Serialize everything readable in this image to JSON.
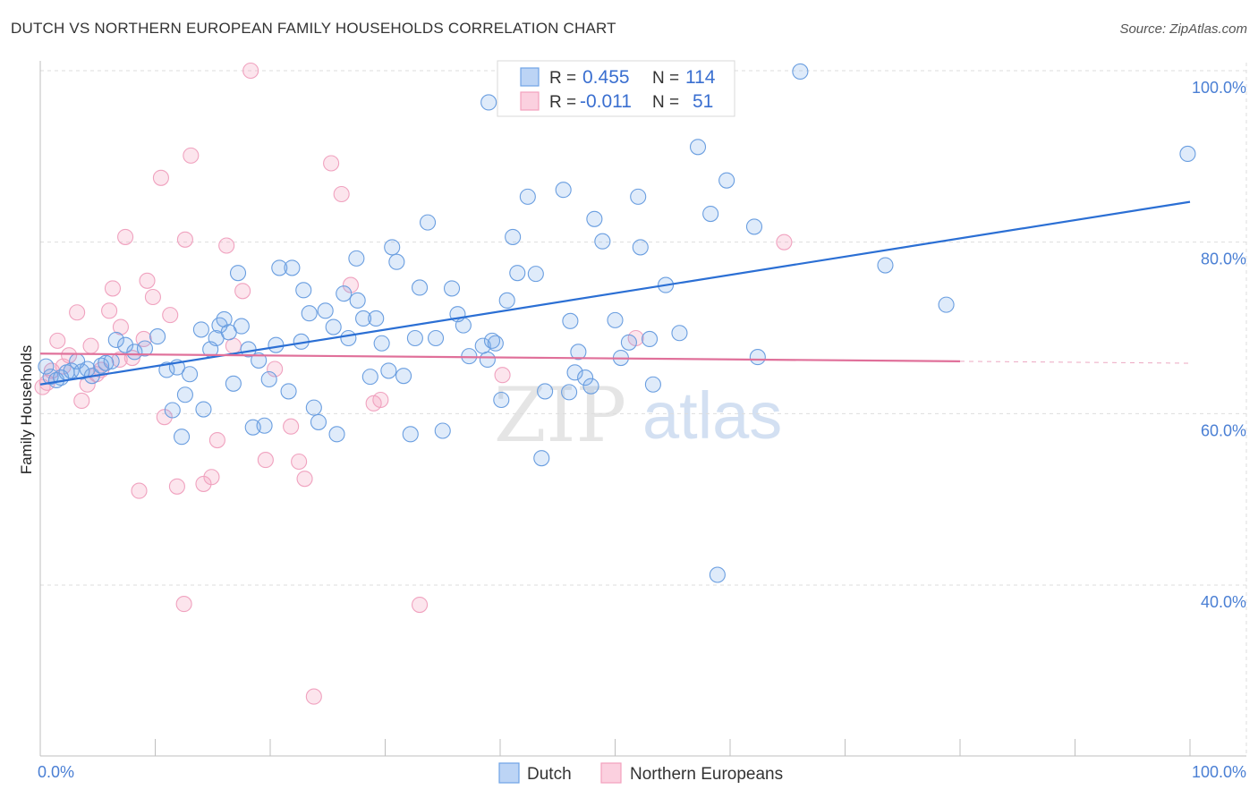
{
  "title": "DUTCH VS NORTHERN EUROPEAN FAMILY HOUSEHOLDS CORRELATION CHART",
  "source": "Source: ZipAtlas.com",
  "watermark": {
    "zip": "ZIP",
    "atlas": "atlas"
  },
  "colors": {
    "blue": "#6fa3e6",
    "blue_line": "#2b6fd4",
    "pink": "#f4a0bd",
    "pink_line": "#e0709a",
    "tick": "#4a7fd4"
  },
  "legend": {
    "rows": [
      {
        "r_label": "R =",
        "r_value": "0.455",
        "n_label": "N =",
        "n_value": "114"
      },
      {
        "r_label": "R =",
        "r_value": "-0.011",
        "n_label": "N =",
        "n_value": "51"
      }
    ]
  },
  "bottom_legend": [
    "Dutch",
    "Northern Europeans"
  ],
  "chart_data": {
    "type": "scatter",
    "title": "DUTCH VS NORTHERN EUROPEAN FAMILY HOUSEHOLDS CORRELATION CHART",
    "xlabel": "",
    "ylabel": "Family Households",
    "xlim": [
      0,
      100
    ],
    "ylim": [
      22,
      102
    ],
    "x_tick_labels": [
      "0.0%",
      "100.0%"
    ],
    "y_ticks": [
      40,
      60,
      80,
      100
    ],
    "y_tick_labels": [
      "40.0%",
      "60.0%",
      "80.0%",
      "100.0%"
    ],
    "grid": true,
    "legend_position": "top-center",
    "series": [
      {
        "name": "Dutch",
        "color": "#6fa3e6",
        "trend": {
          "x": [
            0,
            100
          ],
          "y": [
            63.4,
            84.7
          ]
        },
        "points": [
          [
            0.5,
            65.5
          ],
          [
            0.9,
            64.3
          ],
          [
            1.4,
            63.9
          ],
          [
            1.8,
            64.2
          ],
          [
            2.3,
            64.8
          ],
          [
            2.7,
            65.0
          ],
          [
            3.2,
            66.1
          ],
          [
            3.6,
            64.9
          ],
          [
            4.1,
            65.2
          ],
          [
            4.5,
            64.4
          ],
          [
            5.3,
            65.6
          ],
          [
            5.7,
            65.9
          ],
          [
            6.2,
            66.1
          ],
          [
            6.6,
            68.6
          ],
          [
            7.4,
            68.0
          ],
          [
            8.2,
            67.2
          ],
          [
            9.1,
            67.6
          ],
          [
            10.2,
            69.0
          ],
          [
            11.0,
            65.1
          ],
          [
            11.5,
            60.4
          ],
          [
            11.9,
            65.4
          ],
          [
            12.6,
            62.2
          ],
          [
            12.3,
            57.3
          ],
          [
            13.0,
            64.6
          ],
          [
            14.2,
            60.5
          ],
          [
            14.0,
            69.8
          ],
          [
            14.8,
            67.5
          ],
          [
            15.3,
            68.8
          ],
          [
            15.6,
            70.3
          ],
          [
            16.0,
            71.0
          ],
          [
            16.4,
            69.5
          ],
          [
            16.8,
            63.5
          ],
          [
            17.2,
            76.4
          ],
          [
            17.5,
            70.2
          ],
          [
            18.1,
            67.5
          ],
          [
            18.5,
            58.4
          ],
          [
            19.0,
            66.2
          ],
          [
            19.5,
            58.6
          ],
          [
            19.9,
            64.0
          ],
          [
            20.5,
            68.0
          ],
          [
            20.8,
            77.0
          ],
          [
            21.6,
            62.6
          ],
          [
            21.9,
            77.0
          ],
          [
            22.7,
            68.4
          ],
          [
            22.9,
            74.4
          ],
          [
            23.4,
            71.7
          ],
          [
            23.8,
            60.7
          ],
          [
            24.2,
            59.0
          ],
          [
            24.8,
            72.0
          ],
          [
            25.5,
            70.1
          ],
          [
            25.8,
            57.6
          ],
          [
            26.4,
            74.0
          ],
          [
            26.8,
            68.8
          ],
          [
            27.5,
            78.1
          ],
          [
            27.6,
            73.2
          ],
          [
            28.1,
            71.1
          ],
          [
            28.7,
            64.3
          ],
          [
            29.2,
            71.1
          ],
          [
            29.7,
            68.2
          ],
          [
            30.3,
            65.0
          ],
          [
            30.6,
            79.4
          ],
          [
            31.0,
            77.7
          ],
          [
            31.6,
            64.4
          ],
          [
            32.2,
            57.6
          ],
          [
            32.6,
            68.8
          ],
          [
            33.0,
            74.7
          ],
          [
            33.7,
            82.3
          ],
          [
            34.4,
            68.8
          ],
          [
            35.0,
            58.0
          ],
          [
            35.8,
            74.6
          ],
          [
            36.3,
            71.6
          ],
          [
            36.8,
            70.3
          ],
          [
            37.3,
            66.7
          ],
          [
            38.5,
            67.9
          ],
          [
            38.9,
            66.3
          ],
          [
            39.3,
            68.5
          ],
          [
            39.6,
            68.2
          ],
          [
            39.0,
            96.3
          ],
          [
            40.1,
            61.6
          ],
          [
            40.6,
            73.2
          ],
          [
            41.1,
            80.6
          ],
          [
            41.5,
            76.4
          ],
          [
            42.4,
            85.3
          ],
          [
            43.1,
            76.3
          ],
          [
            43.6,
            54.8
          ],
          [
            43.9,
            62.6
          ],
          [
            45.5,
            86.1
          ],
          [
            46.0,
            62.5
          ],
          [
            46.5,
            64.8
          ],
          [
            46.1,
            70.8
          ],
          [
            46.8,
            67.2
          ],
          [
            47.4,
            64.2
          ],
          [
            47.9,
            63.2
          ],
          [
            48.2,
            82.7
          ],
          [
            48.9,
            80.1
          ],
          [
            50.0,
            70.9
          ],
          [
            50.5,
            66.5
          ],
          [
            51.2,
            68.3
          ],
          [
            52.0,
            85.3
          ],
          [
            52.2,
            79.4
          ],
          [
            53.0,
            68.7
          ],
          [
            53.3,
            63.4
          ],
          [
            54.4,
            75.0
          ],
          [
            55.6,
            69.4
          ],
          [
            57.2,
            91.1
          ],
          [
            58.3,
            83.3
          ],
          [
            58.9,
            41.2
          ],
          [
            59.7,
            87.2
          ],
          [
            62.1,
            81.8
          ],
          [
            62.4,
            66.6
          ],
          [
            66.1,
            99.9
          ],
          [
            73.5,
            77.3
          ],
          [
            78.8,
            72.7
          ],
          [
            99.8,
            90.3
          ]
        ]
      },
      {
        "name": "Northern Europeans",
        "color": "#f4a0bd",
        "trend": {
          "x": [
            0,
            80
          ],
          "y": [
            67.0,
            66.1
          ]
        },
        "points": [
          [
            0.2,
            63.1
          ],
          [
            0.6,
            63.6
          ],
          [
            1.0,
            65.0
          ],
          [
            1.5,
            68.5
          ],
          [
            2.0,
            65.5
          ],
          [
            2.5,
            66.8
          ],
          [
            3.2,
            71.8
          ],
          [
            3.6,
            61.5
          ],
          [
            4.1,
            63.4
          ],
          [
            4.4,
            67.9
          ],
          [
            4.9,
            64.6
          ],
          [
            5.3,
            65.1
          ],
          [
            6.0,
            72.0
          ],
          [
            6.3,
            74.6
          ],
          [
            6.9,
            66.3
          ],
          [
            7.0,
            70.1
          ],
          [
            7.4,
            80.6
          ],
          [
            8.0,
            66.5
          ],
          [
            8.6,
            51.0
          ],
          [
            9.0,
            68.7
          ],
          [
            9.3,
            75.5
          ],
          [
            9.8,
            73.6
          ],
          [
            10.5,
            87.5
          ],
          [
            10.8,
            59.6
          ],
          [
            11.3,
            71.5
          ],
          [
            11.9,
            51.5
          ],
          [
            12.5,
            37.8
          ],
          [
            12.6,
            80.3
          ],
          [
            13.1,
            90.1
          ],
          [
            14.2,
            51.8
          ],
          [
            14.9,
            52.6
          ],
          [
            15.4,
            56.9
          ],
          [
            16.2,
            79.6
          ],
          [
            16.8,
            67.9
          ],
          [
            17.6,
            74.3
          ],
          [
            18.3,
            100.0
          ],
          [
            19.6,
            54.6
          ],
          [
            20.4,
            65.2
          ],
          [
            21.8,
            58.5
          ],
          [
            22.5,
            54.4
          ],
          [
            23.0,
            52.4
          ],
          [
            23.8,
            27.0
          ],
          [
            25.3,
            89.2
          ],
          [
            26.2,
            85.6
          ],
          [
            27.0,
            75.0
          ],
          [
            29.0,
            61.2
          ],
          [
            29.6,
            61.6
          ],
          [
            33.0,
            37.7
          ],
          [
            40.2,
            64.5
          ],
          [
            51.8,
            68.8
          ],
          [
            64.7,
            80.0
          ]
        ]
      }
    ]
  }
}
